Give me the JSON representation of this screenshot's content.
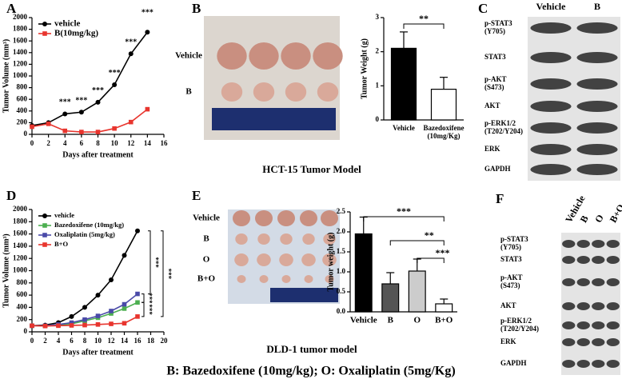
{
  "chart_data": [
    {
      "type": "line",
      "label": "A",
      "ylabel": "Tumor Volume (mm³)",
      "xlabel": "Days after treatment",
      "x": [
        0,
        2,
        4,
        6,
        8,
        10,
        12,
        14
      ],
      "series": [
        {
          "name": "vehicle",
          "color": "#000000",
          "values": [
            150,
            200,
            350,
            380,
            550,
            850,
            1380,
            1750
          ]
        },
        {
          "name": "B(10mg/kg)",
          "color": "#e8352e",
          "values": [
            130,
            180,
            60,
            40,
            40,
            100,
            210,
            430
          ]
        }
      ],
      "xlim": [
        0,
        16
      ],
      "xticks": [
        0,
        2,
        4,
        6,
        8,
        10,
        12,
        14,
        16
      ],
      "ylim": [
        0,
        2000
      ],
      "yticks": [
        0,
        200,
        400,
        600,
        800,
        1000,
        1200,
        1400,
        1600,
        1800,
        2000
      ],
      "legend": "upper left",
      "annotations": [
        "***",
        "***",
        "***",
        "***",
        "***",
        "***"
      ]
    },
    {
      "type": "bar",
      "label": "B",
      "ylabel": "Tumor Weight (g)",
      "categories": [
        "Vehicle",
        "Bazedoxifene (10mg/Kg)"
      ],
      "values": [
        2.1,
        0.9
      ],
      "errors": [
        0.48,
        0.35
      ],
      "colors": [
        "#000000",
        "#ffffff"
      ],
      "ylim": [
        0,
        3
      ],
      "yticks": [
        0,
        1,
        2,
        3
      ],
      "annotations": [
        "**"
      ]
    },
    {
      "type": "line",
      "label": "D",
      "ylabel": "Tumor Volume (mm³)",
      "xlabel": "Days after treatment",
      "x": [
        0,
        2,
        4,
        6,
        8,
        10,
        12,
        14,
        16
      ],
      "series": [
        {
          "name": "vehicle",
          "color": "#000000",
          "values": [
            100,
            110,
            150,
            250,
            400,
            600,
            850,
            1250,
            1650
          ]
        },
        {
          "name": "Bazedoxifene (10mg/kg)",
          "color": "#4caf50",
          "values": [
            100,
            100,
            110,
            130,
            180,
            230,
            300,
            380,
            480
          ]
        },
        {
          "name": "Oxaliplatin (5mg/kg)",
          "color": "#4a4aa8",
          "values": [
            100,
            100,
            120,
            150,
            200,
            260,
            340,
            450,
            620
          ]
        },
        {
          "name": "B+O",
          "color": "#e8352e",
          "values": [
            100,
            95,
            100,
            105,
            110,
            120,
            130,
            140,
            250
          ]
        }
      ],
      "xlim": [
        0,
        20
      ],
      "xticks": [
        0,
        2,
        4,
        6,
        8,
        10,
        12,
        14,
        16,
        18,
        20
      ],
      "ylim": [
        0,
        2000
      ],
      "yticks": [
        0,
        200,
        400,
        600,
        800,
        1000,
        1200,
        1400,
        1600,
        1800,
        2000
      ],
      "legend": "upper left",
      "annotations": [
        "***",
        "***",
        "***",
        "***"
      ]
    },
    {
      "type": "bar",
      "label": "E",
      "ylabel": "Tumor weight (g)",
      "categories": [
        "Vehicle",
        "B",
        "O",
        "B+O"
      ],
      "values": [
        1.95,
        0.7,
        1.02,
        0.2
      ],
      "errors": [
        0.42,
        0.28,
        0.3,
        0.12
      ],
      "colors": [
        "#000000",
        "#555555",
        "#cccccc",
        "#ffffff"
      ],
      "ylim": [
        0,
        2.5
      ],
      "yticks": [
        {
          "value": 0,
          "label": "0.0"
        },
        0.5,
        {
          "value": 1,
          "label": "1.0"
        },
        1.5,
        {
          "value": 2,
          "label": "2.0"
        },
        2.5
      ],
      "annotations": [
        "***",
        "**",
        "***"
      ]
    }
  ],
  "photos": [
    {
      "rows": [
        "Vehicle",
        "B"
      ]
    },
    {
      "rows": [
        "Vehicle",
        "B",
        "O",
        "B+O"
      ]
    }
  ],
  "blots": [
    {
      "label": "C",
      "lanes": [
        "Vehicle",
        "B"
      ],
      "rows": [
        "p-STAT3 (Y705)",
        "STAT3",
        "p-AKT (S473)",
        "AKT",
        "p-ERK1/2 (T202/Y204)",
        "ERK",
        "GAPDH"
      ]
    },
    {
      "label": "F",
      "lanes": [
        "Vehicle",
        "B",
        "O",
        "B+O"
      ],
      "rows": [
        "p-STAT3 (Y705)",
        "STAT3",
        "p-AKT (S473)",
        "AKT",
        "p-ERK1/2 (T202/Y204)",
        "ERK",
        "GAPDH"
      ]
    }
  ],
  "captions": [
    "HCT-15 Tumor Model",
    "DLD-1 tumor model"
  ],
  "footer": "B: Bazedoxifene (10mg/kg); O: Oxaliplatin (5mg/Kg)"
}
